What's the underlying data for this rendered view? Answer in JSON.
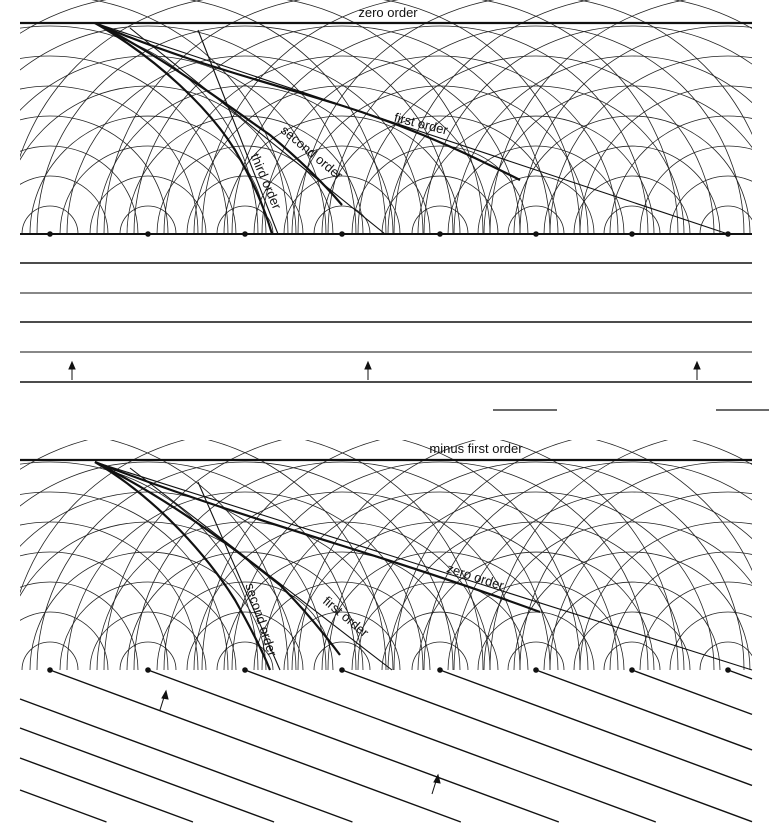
{
  "top_panel": {
    "labels": {
      "zero_order": "zero order",
      "first_order": "first order",
      "second_order": "second order",
      "third_order": "third order"
    }
  },
  "bottom_panel": {
    "labels": {
      "minus_first_order": "minus first order",
      "zero_order": "zero order",
      "first_order": "first order",
      "second_order": "second order"
    }
  },
  "colors": {
    "ink": "#111111",
    "background": "#ffffff"
  }
}
